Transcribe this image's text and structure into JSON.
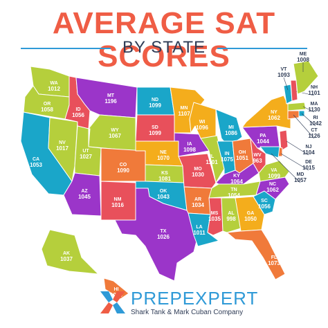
{
  "header": {
    "title": "AVERAGE SAT SCORES",
    "subtitle": "BY STATE"
  },
  "brand": {
    "name": "PREPEXPERT",
    "tagline": "Shark Tank & Mark Cuban Company",
    "colors": {
      "blue": "#2f9ad7",
      "orange": "#ef5d45",
      "navy": "#2f3c56"
    }
  },
  "states": [
    {
      "abbr": "WA",
      "score": "1012",
      "color": "#b5cf3c"
    },
    {
      "abbr": "OR",
      "score": "1058",
      "color": "#b5cf3c"
    },
    {
      "abbr": "CA",
      "score": "1053",
      "color": "#1aa6c9"
    },
    {
      "abbr": "NV",
      "score": "1017",
      "color": "#b5cf3c"
    },
    {
      "abbr": "ID",
      "score": "1056",
      "color": "#e8505b"
    },
    {
      "abbr": "MT",
      "score": "1196",
      "color": "#9b35c9"
    },
    {
      "abbr": "WY",
      "score": "1067",
      "color": "#b5cf3c"
    },
    {
      "abbr": "UT",
      "score": "1027",
      "color": "#b5cf3c"
    },
    {
      "abbr": "AZ",
      "score": "1045",
      "color": "#9b35c9"
    },
    {
      "abbr": "CO",
      "score": "1090",
      "color": "#f07a3a"
    },
    {
      "abbr": "NM",
      "score": "1016",
      "color": "#e8505b"
    },
    {
      "abbr": "ND",
      "score": "1099",
      "color": "#1aa6c9"
    },
    {
      "abbr": "SD",
      "score": "1099",
      "color": "#e8505b"
    },
    {
      "abbr": "NE",
      "score": "1070",
      "color": "#f4ad1c"
    },
    {
      "abbr": "KS",
      "score": "1081",
      "color": "#b5cf3c"
    },
    {
      "abbr": "OK",
      "score": "1043",
      "color": "#1aa6c9"
    },
    {
      "abbr": "TX",
      "score": "1026",
      "color": "#9b35c9"
    },
    {
      "abbr": "MN",
      "score": "1107",
      "color": "#f4ad1c"
    },
    {
      "abbr": "IA",
      "score": "1098",
      "color": "#9b35c9"
    },
    {
      "abbr": "MO",
      "score": "1030",
      "color": "#e8505b"
    },
    {
      "abbr": "AR",
      "score": "1034",
      "color": "#f07a3a"
    },
    {
      "abbr": "LA",
      "score": "1011",
      "color": "#1aa6c9"
    },
    {
      "abbr": "WI",
      "score": "1096",
      "color": "#f4ad1c"
    },
    {
      "abbr": "IL",
      "score": "1101",
      "color": "#b5cf3c"
    },
    {
      "abbr": "MI",
      "score": "1086",
      "color": "#1aa6c9"
    },
    {
      "abbr": "IN",
      "score": "1075",
      "color": "#1aa6c9"
    },
    {
      "abbr": "OH",
      "score": "1051",
      "color": "#f07a3a"
    },
    {
      "abbr": "KY",
      "score": "1064",
      "color": "#9b35c9"
    },
    {
      "abbr": "TN",
      "score": "1054",
      "color": "#b5cf3c"
    },
    {
      "abbr": "MS",
      "score": "1035",
      "color": "#e8505b"
    },
    {
      "abbr": "AL",
      "score": "998",
      "color": "#b5cf3c"
    },
    {
      "abbr": "GA",
      "score": "1050",
      "color": "#f4ad1c"
    },
    {
      "abbr": "FL",
      "score": "1073",
      "color": "#f07a3a"
    },
    {
      "abbr": "SC",
      "score": "1056",
      "color": "#1aa6c9"
    },
    {
      "abbr": "NC",
      "score": "1062",
      "color": "#9b35c9"
    },
    {
      "abbr": "VA",
      "score": "1099",
      "color": "#b5cf3c"
    },
    {
      "abbr": "WV",
      "score": "963",
      "color": "#e8505b"
    },
    {
      "abbr": "PA",
      "score": "1044",
      "color": "#9b35c9"
    },
    {
      "abbr": "NY",
      "score": "1062",
      "color": "#f4ad1c"
    },
    {
      "abbr": "VT",
      "score": "1093",
      "color": "#1aa6c9"
    },
    {
      "abbr": "NH",
      "score": "1101",
      "color": "#e8505b"
    },
    {
      "abbr": "ME",
      "score": "1008",
      "color": "#b5cf3c"
    },
    {
      "abbr": "MA",
      "score": "1130",
      "color": "#b5cf3c"
    },
    {
      "abbr": "RI",
      "score": "1042",
      "color": "#1aa6c9"
    },
    {
      "abbr": "CT",
      "score": "1126",
      "color": "#f07a3a"
    },
    {
      "abbr": "NJ",
      "score": "1104",
      "color": "#e8505b"
    },
    {
      "abbr": "DE",
      "score": "1015",
      "color": "#f07a3a"
    },
    {
      "abbr": "MD",
      "score": "1057",
      "color": "#1aa6c9"
    },
    {
      "abbr": "AK",
      "score": "1037",
      "color": "#b5cf3c"
    },
    {
      "abbr": "HI",
      "score": "1056",
      "color": "#f07a3a"
    }
  ]
}
